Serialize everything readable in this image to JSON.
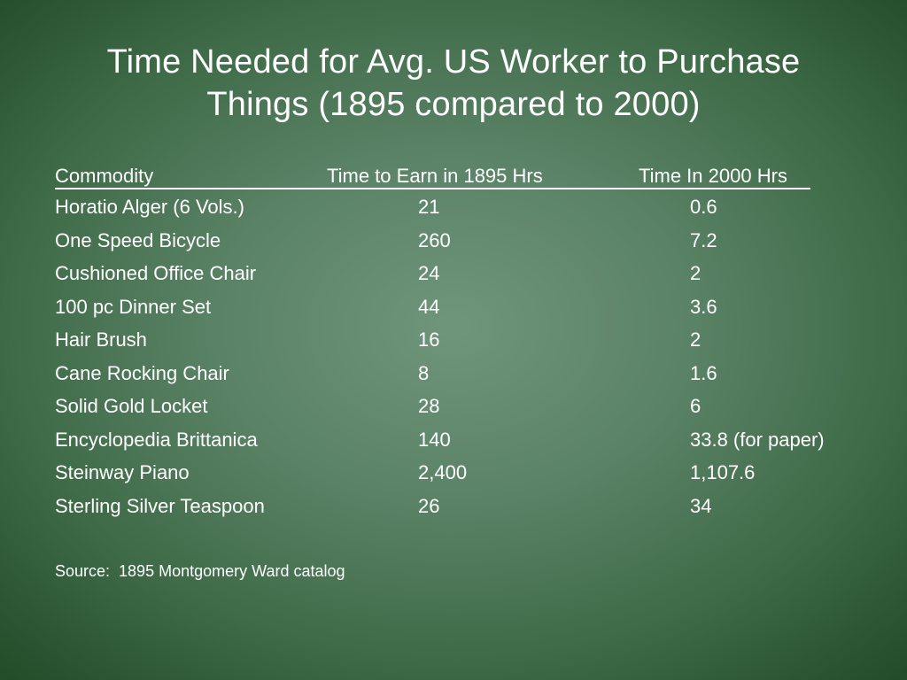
{
  "slide": {
    "title_line1": "Time Needed for Avg. US Worker to Purchase",
    "title_line2": "Things  (1895 compared to 2000)"
  },
  "table": {
    "headers": [
      "Commodity",
      "Time to Earn in 1895 Hrs",
      "Time In 2000 Hrs"
    ],
    "rows": [
      [
        "Horatio Alger (6 Vols.)",
        "21",
        "0.6"
      ],
      [
        "One Speed Bicycle",
        "260",
        "7.2"
      ],
      [
        "Cushioned Office Chair",
        "24",
        "2"
      ],
      [
        "100 pc Dinner Set",
        "44",
        "3.6"
      ],
      [
        "Hair Brush",
        "16",
        "2"
      ],
      [
        "Cane Rocking Chair",
        "8",
        "1.6"
      ],
      [
        "Solid Gold Locket",
        "28",
        "6"
      ],
      [
        "Encyclopedia Brittanica",
        "140",
        "33.8 (for paper)"
      ],
      [
        "Steinway Piano",
        "2,400",
        "1,107.6"
      ],
      [
        "Sterling Silver Teaspoon",
        "26",
        "34"
      ]
    ]
  },
  "source": "Source:  1895 Montgomery Ward catalog",
  "colors": {
    "background_center": "#6f957b",
    "background_edge": "#1f4724",
    "text": "#ffffff"
  }
}
